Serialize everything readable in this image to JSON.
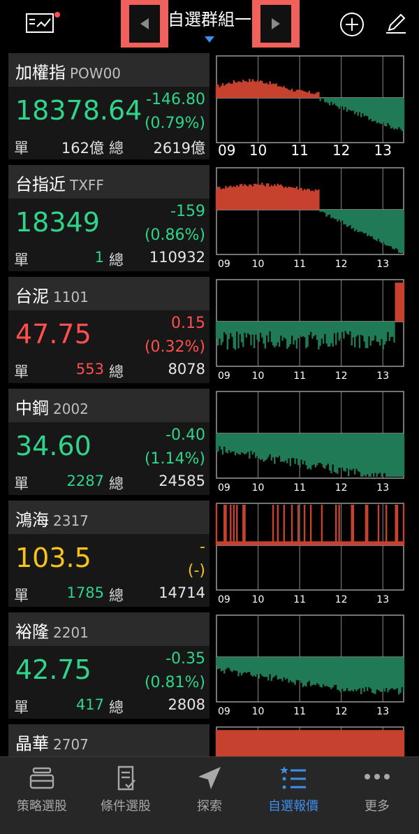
{
  "header": {
    "group_title": "自選群組一"
  },
  "stocks": [
    {
      "name": "加權指",
      "code": "POW00",
      "price": "18378.64",
      "change": "-146.80",
      "pct": "(0.79%)",
      "unit_label": "單",
      "unit": "162億",
      "total_label": "總",
      "total": "2619億"
    },
    {
      "name": "台指近",
      "code": "TXFF",
      "price": "18349",
      "change": "-159",
      "pct": "(0.86%)",
      "unit_label": "單",
      "unit": "1",
      "total_label": "總",
      "total": "110932"
    },
    {
      "name": "台泥",
      "code": "1101",
      "price": "47.75",
      "change": "0.15",
      "pct": "(0.32%)",
      "unit_label": "單",
      "unit": "553",
      "total_label": "總",
      "total": "8078"
    },
    {
      "name": "中鋼",
      "code": "2002",
      "price": "34.60",
      "change": "-0.40",
      "pct": "(1.14%)",
      "unit_label": "單",
      "unit": "2287",
      "total_label": "總",
      "total": "24585"
    },
    {
      "name": "鴻海",
      "code": "2317",
      "price": "103.5",
      "change": "-",
      "pct": "(-)",
      "unit_label": "單",
      "unit": "1785",
      "total_label": "總",
      "total": "14714"
    },
    {
      "name": "裕隆",
      "code": "2201",
      "price": "42.75",
      "change": "-0.35",
      "pct": "(0.81%)",
      "unit_label": "單",
      "unit": "417",
      "total_label": "總",
      "total": "2808"
    },
    {
      "name": "晶華",
      "code": "2707"
    }
  ],
  "chart_labels": {
    "x_ticks": [
      "09",
      "10",
      "11",
      "12",
      "13"
    ]
  },
  "tabs": [
    {
      "label": "策略選股",
      "icon": "layers-icon"
    },
    {
      "label": "條件選股",
      "icon": "checklist-icon"
    },
    {
      "label": "探索",
      "icon": "navigation-arrow-icon"
    },
    {
      "label": "自選報價",
      "icon": "starred-list-icon"
    },
    {
      "label": "更多",
      "icon": "more-dots-icon"
    }
  ],
  "colors": {
    "up": "#ff4f4f",
    "down": "#2fd58a",
    "flat": "#f6c41a",
    "active_tab": "#3f8ff0",
    "highlight": "#f2605c"
  }
}
